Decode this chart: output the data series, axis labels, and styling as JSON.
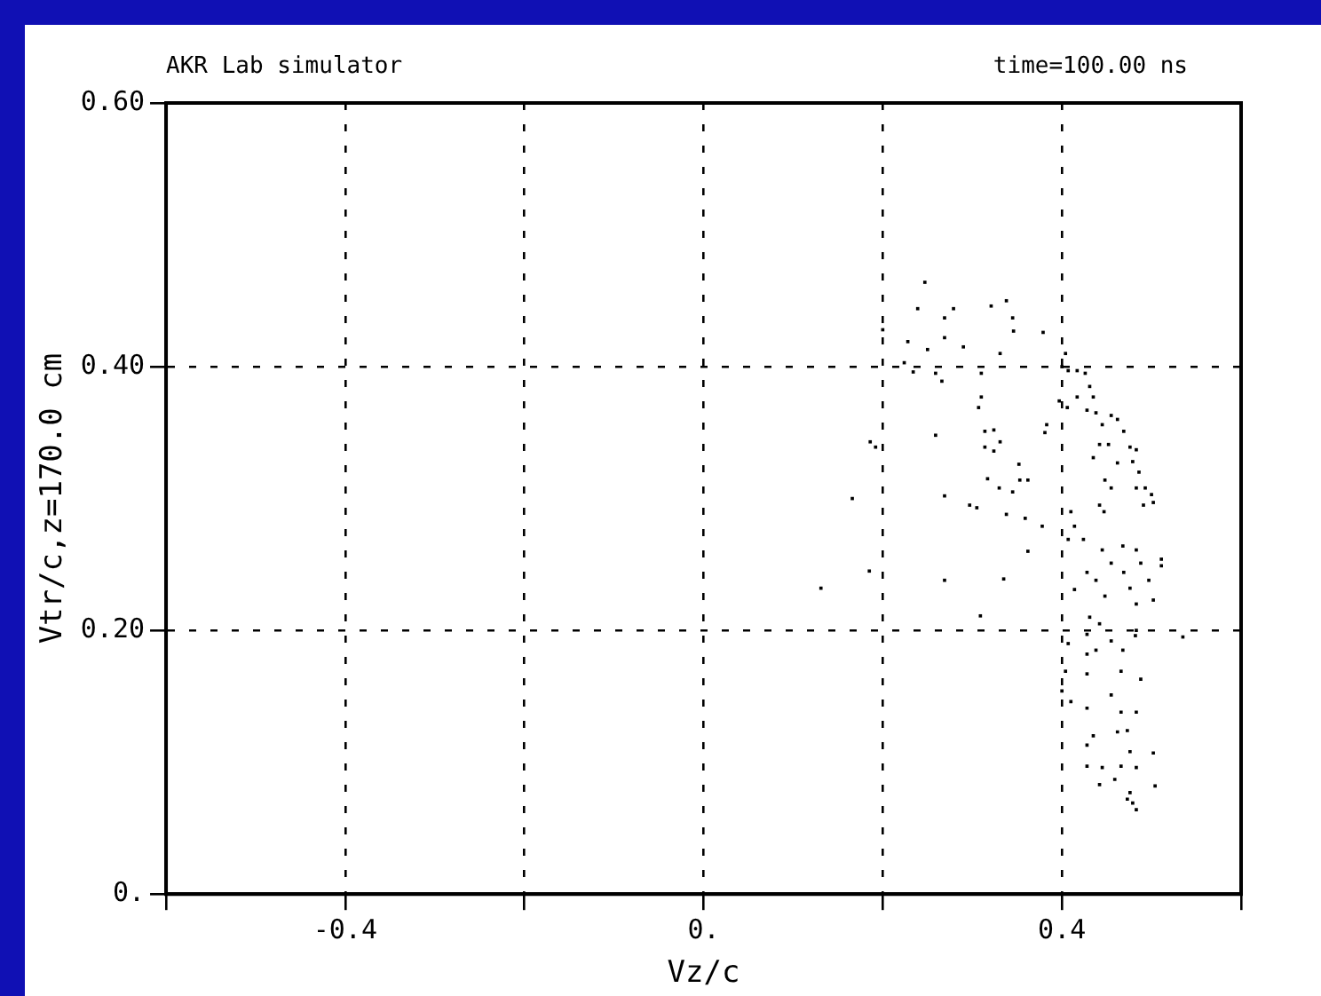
{
  "chart_data": {
    "type": "scatter",
    "xlabel": "Vz/c",
    "ylabel": "Vtr/c,z=170.0 cm",
    "annotations": [
      "AKR Lab simulator",
      "time=100.00 ns"
    ],
    "xlim": [
      -0.6,
      0.6
    ],
    "xticks": [
      {
        "value": -0.6,
        "label": null
      },
      {
        "value": -0.4,
        "label": "-0.4"
      },
      {
        "value": -0.2,
        "label": null
      },
      {
        "value": 0,
        "label": "0."
      },
      {
        "value": 0.2,
        "label": null
      },
      {
        "value": 0.4,
        "label": "0.4"
      },
      {
        "value": 0.6,
        "label": null
      }
    ],
    "ylim": [
      0,
      0.6
    ],
    "yticks": [
      {
        "value": 0,
        "label": "0."
      },
      {
        "value": 0.2,
        "label": "0.20"
      },
      {
        "value": 0.4,
        "label": "0.40"
      },
      {
        "value": 0.6,
        "label": "0.60"
      }
    ],
    "grid": true,
    "legend": false,
    "marker": "square",
    "series": [
      {
        "color": "#000000",
        "x": [
          0.247,
          0.239,
          0.2,
          0.228,
          0.25,
          0.234,
          0.224,
          0.269,
          0.279,
          0.321,
          0.338,
          0.345,
          0.346,
          0.379,
          0.269,
          0.29,
          0.331,
          0.266,
          0.259,
          0.31,
          0.404,
          0.31,
          0.307,
          0.259,
          0.314,
          0.324,
          0.331,
          0.314,
          0.324,
          0.186,
          0.192,
          0.383,
          0.381,
          0.166,
          0.269,
          0.297,
          0.305,
          0.317,
          0.33,
          0.345,
          0.352,
          0.353,
          0.362,
          0.338,
          0.359,
          0.378,
          0.362,
          0.185,
          0.131,
          0.269,
          0.335,
          0.309,
          0.4,
          0.407,
          0.417,
          0.426,
          0.431,
          0.435,
          0.397,
          0.406,
          0.417,
          0.428,
          0.438,
          0.445,
          0.455,
          0.462,
          0.469,
          0.476,
          0.483,
          0.442,
          0.452,
          0.435,
          0.462,
          0.479,
          0.486,
          0.493,
          0.5,
          0.502,
          0.491,
          0.483,
          0.448,
          0.455,
          0.442,
          0.447,
          0.41,
          0.414,
          0.424,
          0.407,
          0.445,
          0.455,
          0.468,
          0.483,
          0.488,
          0.511,
          0.511,
          0.428,
          0.438,
          0.448,
          0.469,
          0.476,
          0.483,
          0.497,
          0.502,
          0.414,
          0.431,
          0.442,
          0.428,
          0.455,
          0.468,
          0.482,
          0.483,
          0.535,
          0.407,
          0.428,
          0.438,
          0.404,
          0.428,
          0.466,
          0.488,
          0.4,
          0.41,
          0.428,
          0.455,
          0.466,
          0.483,
          0.435,
          0.428,
          0.462,
          0.473,
          0.476,
          0.502,
          0.428,
          0.445,
          0.466,
          0.483,
          0.459,
          0.442,
          0.476,
          0.504,
          0.479,
          0.483,
          0.473
        ],
        "values": [
          0.464,
          0.444,
          0.428,
          0.419,
          0.413,
          0.396,
          0.403,
          0.437,
          0.444,
          0.446,
          0.45,
          0.437,
          0.427,
          0.426,
          0.422,
          0.415,
          0.41,
          0.389,
          0.395,
          0.395,
          0.41,
          0.377,
          0.369,
          0.348,
          0.351,
          0.352,
          0.343,
          0.339,
          0.336,
          0.343,
          0.339,
          0.356,
          0.35,
          0.3,
          0.302,
          0.295,
          0.293,
          0.315,
          0.308,
          0.305,
          0.326,
          0.314,
          0.314,
          0.288,
          0.285,
          0.279,
          0.26,
          0.245,
          0.232,
          0.238,
          0.239,
          0.211,
          0.4,
          0.397,
          0.397,
          0.395,
          0.385,
          0.377,
          0.374,
          0.369,
          0.377,
          0.367,
          0.365,
          0.356,
          0.363,
          0.36,
          0.351,
          0.339,
          0.337,
          0.341,
          0.341,
          0.331,
          0.327,
          0.328,
          0.32,
          0.308,
          0.303,
          0.297,
          0.295,
          0.308,
          0.314,
          0.308,
          0.295,
          0.29,
          0.29,
          0.279,
          0.269,
          0.269,
          0.261,
          0.251,
          0.264,
          0.261,
          0.251,
          0.254,
          0.249,
          0.244,
          0.238,
          0.226,
          0.244,
          0.232,
          0.22,
          0.238,
          0.223,
          0.231,
          0.21,
          0.205,
          0.197,
          0.192,
          0.185,
          0.196,
          0.2,
          0.195,
          0.19,
          0.182,
          0.185,
          0.169,
          0.167,
          0.169,
          0.163,
          0.154,
          0.146,
          0.141,
          0.151,
          0.138,
          0.138,
          0.12,
          0.113,
          0.123,
          0.124,
          0.108,
          0.107,
          0.097,
          0.096,
          0.097,
          0.096,
          0.087,
          0.083,
          0.077,
          0.082,
          0.069,
          0.064,
          0.072
        ]
      }
    ]
  }
}
